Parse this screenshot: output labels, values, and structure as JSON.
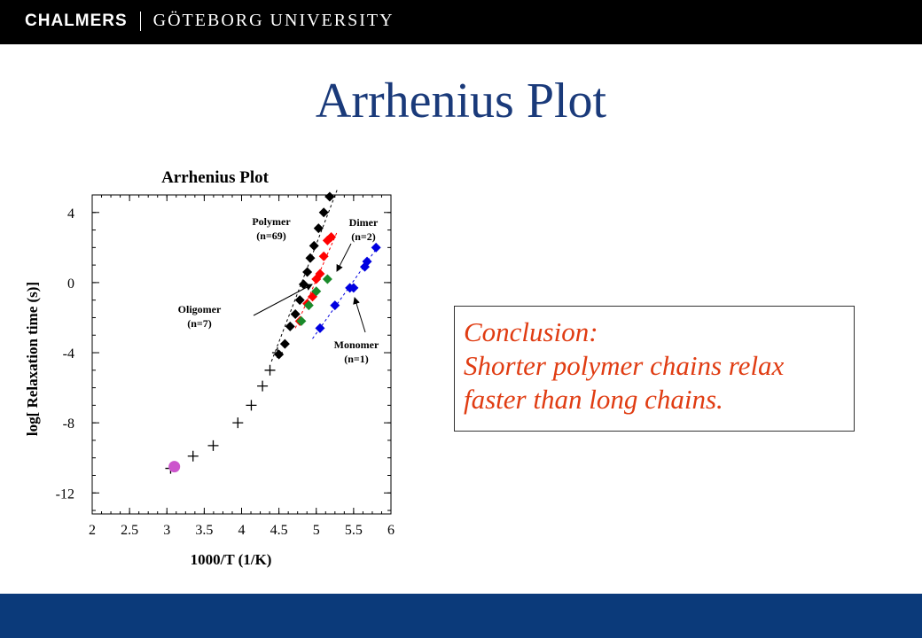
{
  "header": {
    "brand_left": "CHALMERS",
    "brand_right": "GÖTEBORG UNIVERSITY"
  },
  "colors": {
    "header_bg": "#000000",
    "footer_bg": "#0b3a7a",
    "title": "#1a3a7a",
    "conclusion_text": "#e03c12",
    "polymer": "#000000",
    "dimer": "#ff0000",
    "oligomer": "#1a8a2a",
    "monomer": "#0000e0",
    "marker_circle": "#cc55cc"
  },
  "slide_title": "Arrhenius Plot",
  "conclusion": {
    "lines": [
      "Conclusion:",
      "Shorter polymer chains relax",
      "faster than long chains."
    ]
  },
  "chart_data": {
    "type": "scatter",
    "title": "Arrhenius Plot",
    "xlabel": "1000/T  (1/K)",
    "ylabel": "log[ Relaxation time (s)]",
    "xlim": [
      2,
      6
    ],
    "ylim": [
      -13.2,
      5
    ],
    "x_ticks": [
      "2",
      "2.5",
      "3",
      "3.5",
      "4",
      "4.5",
      "5",
      "5.5",
      "6"
    ],
    "y_ticks": [
      "4",
      "0",
      "-4",
      "-8",
      "-12"
    ],
    "grid": false,
    "series": [
      {
        "key": "polymer",
        "marker": "diamond",
        "points": [
          [
            4.5,
            -4.1
          ],
          [
            4.58,
            -3.5
          ],
          [
            4.65,
            -2.5
          ],
          [
            4.72,
            -1.8
          ],
          [
            4.78,
            -1.0
          ],
          [
            4.83,
            -0.1
          ],
          [
            4.88,
            0.6
          ],
          [
            4.92,
            1.4
          ],
          [
            4.97,
            2.1
          ],
          [
            5.03,
            3.1
          ],
          [
            5.1,
            4.0
          ],
          [
            5.18,
            4.9
          ]
        ]
      },
      {
        "key": "dimer",
        "marker": "diamond",
        "points": [
          [
            4.78,
            -2.2
          ],
          [
            4.88,
            -1.2
          ],
          [
            4.95,
            -0.8
          ],
          [
            5.0,
            0.2
          ],
          [
            5.05,
            0.5
          ],
          [
            5.1,
            1.5
          ],
          [
            5.15,
            2.4
          ],
          [
            5.2,
            2.6
          ]
        ]
      },
      {
        "key": "oligomer",
        "marker": "diamond",
        "points": [
          [
            4.8,
            -2.2
          ],
          [
            4.9,
            -1.3
          ],
          [
            5.0,
            -0.5
          ],
          [
            5.15,
            0.2
          ]
        ]
      },
      {
        "key": "monomer",
        "marker": "diamond",
        "points": [
          [
            5.05,
            -2.6
          ],
          [
            5.25,
            -1.3
          ],
          [
            5.45,
            -0.3
          ],
          [
            5.5,
            -0.3
          ],
          [
            5.65,
            0.9
          ],
          [
            5.68,
            1.2
          ],
          [
            5.8,
            2.0
          ]
        ]
      },
      {
        "key": "crosses",
        "marker": "plus",
        "points": [
          [
            3.05,
            -10.6
          ],
          [
            3.35,
            -9.9
          ],
          [
            3.62,
            -9.3
          ],
          [
            3.95,
            -8.0
          ],
          [
            4.13,
            -7.0
          ],
          [
            4.28,
            -5.9
          ],
          [
            4.38,
            -5.0
          ],
          [
            4.48,
            -4.0
          ]
        ]
      },
      {
        "key": "circle",
        "marker": "circle",
        "points": [
          [
            3.1,
            -10.5
          ]
        ]
      }
    ],
    "fit_lines": [
      {
        "key": "polymer",
        "points": [
          [
            4.4,
            -4.5
          ],
          [
            5.28,
            5.3
          ]
        ]
      },
      {
        "key": "dimer",
        "points": [
          [
            4.72,
            -2.6
          ],
          [
            5.28,
            2.9
          ]
        ]
      },
      {
        "key": "monomer",
        "points": [
          [
            4.95,
            -3.2
          ],
          [
            5.85,
            2.2
          ]
        ]
      }
    ],
    "annotations": [
      {
        "lines": [
          "Polymer",
          "(n=69)"
        ]
      },
      {
        "lines": [
          "Dimer",
          "(n=2)"
        ]
      },
      {
        "lines": [
          "Oligomer",
          "(n=7)"
        ]
      },
      {
        "lines": [
          "Monomer",
          "(n=1)"
        ]
      }
    ]
  }
}
